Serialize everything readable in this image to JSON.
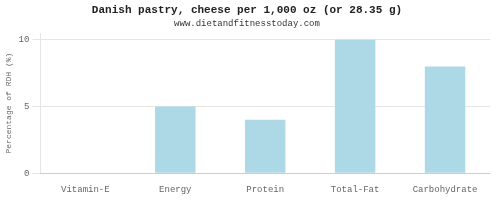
{
  "chart_data": {
    "type": "bar",
    "title": "Danish pastry, cheese per 1,000 oz (or 28.35 g)",
    "subtitle": "www.dietandfitnesstoday.com",
    "categories": [
      "Vitamin-E",
      "Energy",
      "Protein",
      "Total-Fat",
      "Carbohydrate"
    ],
    "values": [
      0,
      5,
      4,
      10,
      8
    ],
    "color": "#add8e6",
    "ylabel": "Percentage of RDH (%)",
    "ylim": [
      0,
      10.5
    ],
    "yticks": [
      0,
      5,
      10
    ],
    "grid": true
  }
}
